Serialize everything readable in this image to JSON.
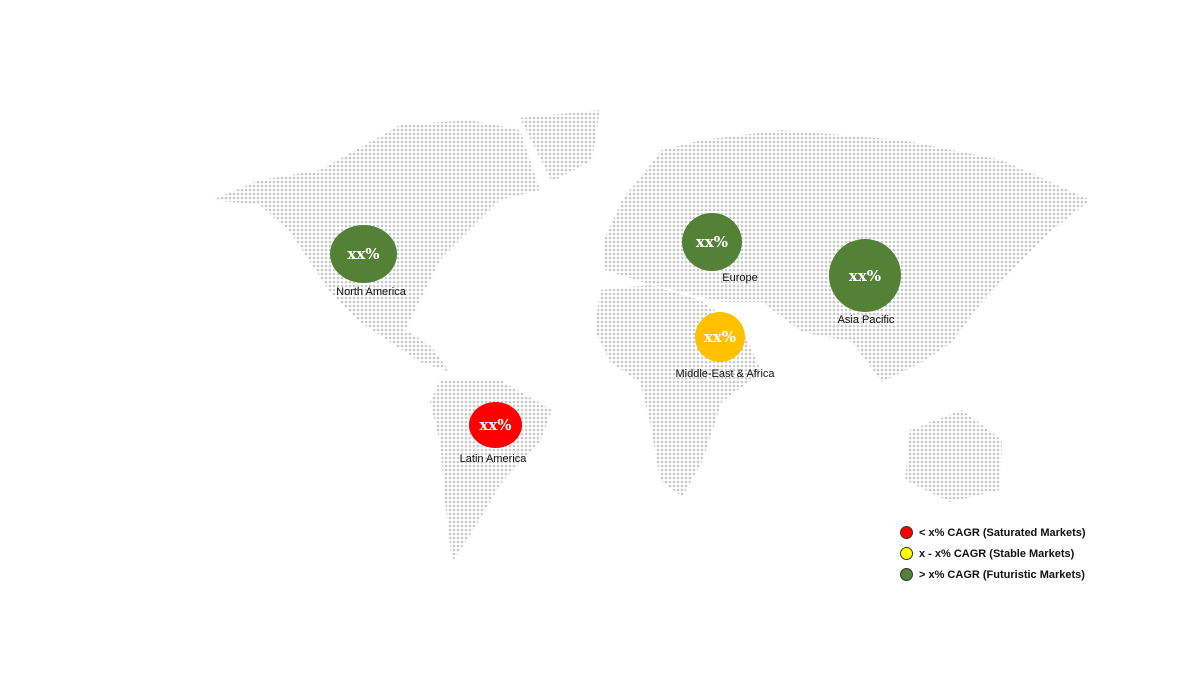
{
  "regions": [
    {
      "name": "North America",
      "value": "xx%",
      "color": "#538135"
    },
    {
      "name": "Europe",
      "value": "xx%",
      "color": "#538135"
    },
    {
      "name": "Asia Pacific",
      "value": "xx%",
      "color": "#538135"
    },
    {
      "name": "Middle-East & Africa",
      "value": "xx%",
      "color": "#FFC000"
    },
    {
      "name": "Latin America",
      "value": "xx%",
      "color": "#FF0000"
    }
  ],
  "legend": [
    {
      "label": "< x% CAGR (Saturated Markets)",
      "color": "#FF0000"
    },
    {
      "label": "x - x% CAGR (Stable Markets)",
      "color": "#FFFF00"
    },
    {
      "label": "> x% CAGR (Futuristic Markets)",
      "color": "#538135"
    }
  ],
  "map_dot_color": "#c8c8c8"
}
